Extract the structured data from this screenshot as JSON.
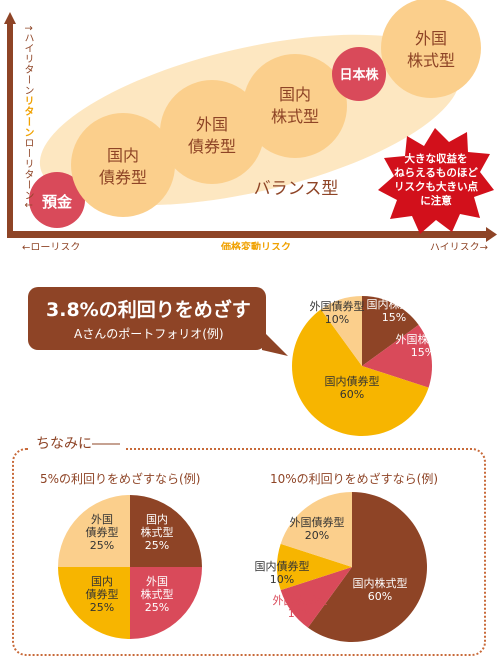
{
  "risk_chart": {
    "y_axis_label_high": "↑ハイリターン",
    "y_axis_label_mid": "リターン",
    "y_axis_label_low": "ローリターン↓",
    "x_axis_label_low": "←ローリスク",
    "x_axis_label_mid": "価格変動リスク",
    "x_axis_label_high": "ハイリスク→",
    "products": [
      {
        "line1": "預金",
        "line2": ""
      },
      {
        "line1": "国内",
        "line2": "債券型"
      },
      {
        "line1": "外国",
        "line2": "債券型"
      },
      {
        "line1": "国内",
        "line2": "株式型"
      },
      {
        "line1": "日本株",
        "line2": ""
      },
      {
        "line1": "外国",
        "line2": "株式型"
      }
    ],
    "balance_label": "バランス型",
    "warning_lines": [
      "大きな収益を",
      "ねらえるものほど",
      "リスクも大きい点",
      "に注意"
    ],
    "colors": {
      "axis": "#8e4426",
      "bubble": "#fbcf8c",
      "ellipse": "#fde7c1",
      "red": "#d94a5a",
      "warning": "#d2101b"
    }
  },
  "main_portfolio": {
    "title": "3.8%の利回りをめざす",
    "subtitle": "Aさんのポートフォリオ(例)"
  },
  "section": {
    "title": "ちなみに――",
    "left_title": "5%の利回りをめざすなら(例)",
    "right_title": "10%の利回りをめざすなら(例)"
  },
  "chart_data": [
    {
      "type": "pie",
      "title": "3.8%の利回りをめざす",
      "slices": [
        {
          "name": "国内株式型",
          "value": 15,
          "label": "15%",
          "color": "#8e4426"
        },
        {
          "name": "外国株式型",
          "value": 15,
          "label": "15%",
          "color": "#d94a5a"
        },
        {
          "name": "国内債券型",
          "value": 60,
          "label": "60%",
          "color": "#f7b500"
        },
        {
          "name": "外国債券型",
          "value": 10,
          "label": "10%",
          "color": "#fbcf8c"
        }
      ]
    },
    {
      "type": "pie",
      "title": "5%の利回りをめざすなら(例)",
      "slices": [
        {
          "name": "国内株式型",
          "value": 25,
          "label": "25%",
          "color": "#8e4426"
        },
        {
          "name": "外国株式型",
          "value": 25,
          "label": "25%",
          "color": "#d94a5a"
        },
        {
          "name": "国内債券型",
          "value": 25,
          "label": "25%",
          "color": "#f7b500"
        },
        {
          "name": "外国債券型",
          "value": 25,
          "label": "25%",
          "color": "#fbcf8c"
        }
      ]
    },
    {
      "type": "pie",
      "title": "10%の利回りをめざすなら(例)",
      "slices": [
        {
          "name": "国内株式型",
          "value": 60,
          "label": "60%",
          "color": "#8e4426"
        },
        {
          "name": "外国株式型",
          "value": 10,
          "label": "10%",
          "color": "#d94a5a"
        },
        {
          "name": "国内債券型",
          "value": 10,
          "label": "10%",
          "color": "#f7b500"
        },
        {
          "name": "外国債券型",
          "value": 20,
          "label": "20%",
          "color": "#fbcf8c"
        }
      ]
    }
  ]
}
